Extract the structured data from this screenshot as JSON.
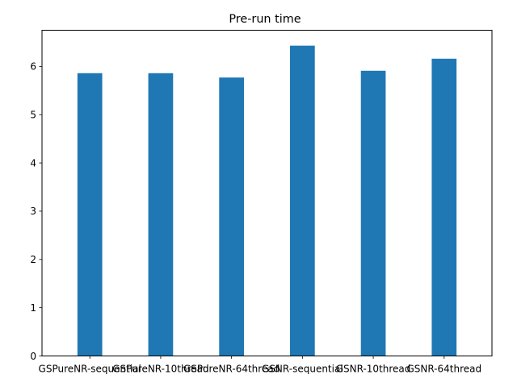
{
  "chart_data": {
    "type": "bar",
    "title": "Pre-run time",
    "xlabel": "",
    "ylabel": "",
    "categories": [
      "GSPureNR-sequential",
      "GSPureNR-10thread",
      "GSPureNR-64thread",
      "GSNR-sequential",
      "GSNR-10thread",
      "GSNR-64thread"
    ],
    "values": [
      5.86,
      5.86,
      5.77,
      6.43,
      5.91,
      6.16
    ],
    "ylim": [
      0,
      6.75
    ],
    "yticks": [
      0,
      1,
      2,
      3,
      4,
      5,
      6
    ],
    "grid": false,
    "bar_color": "#1f77b4"
  }
}
